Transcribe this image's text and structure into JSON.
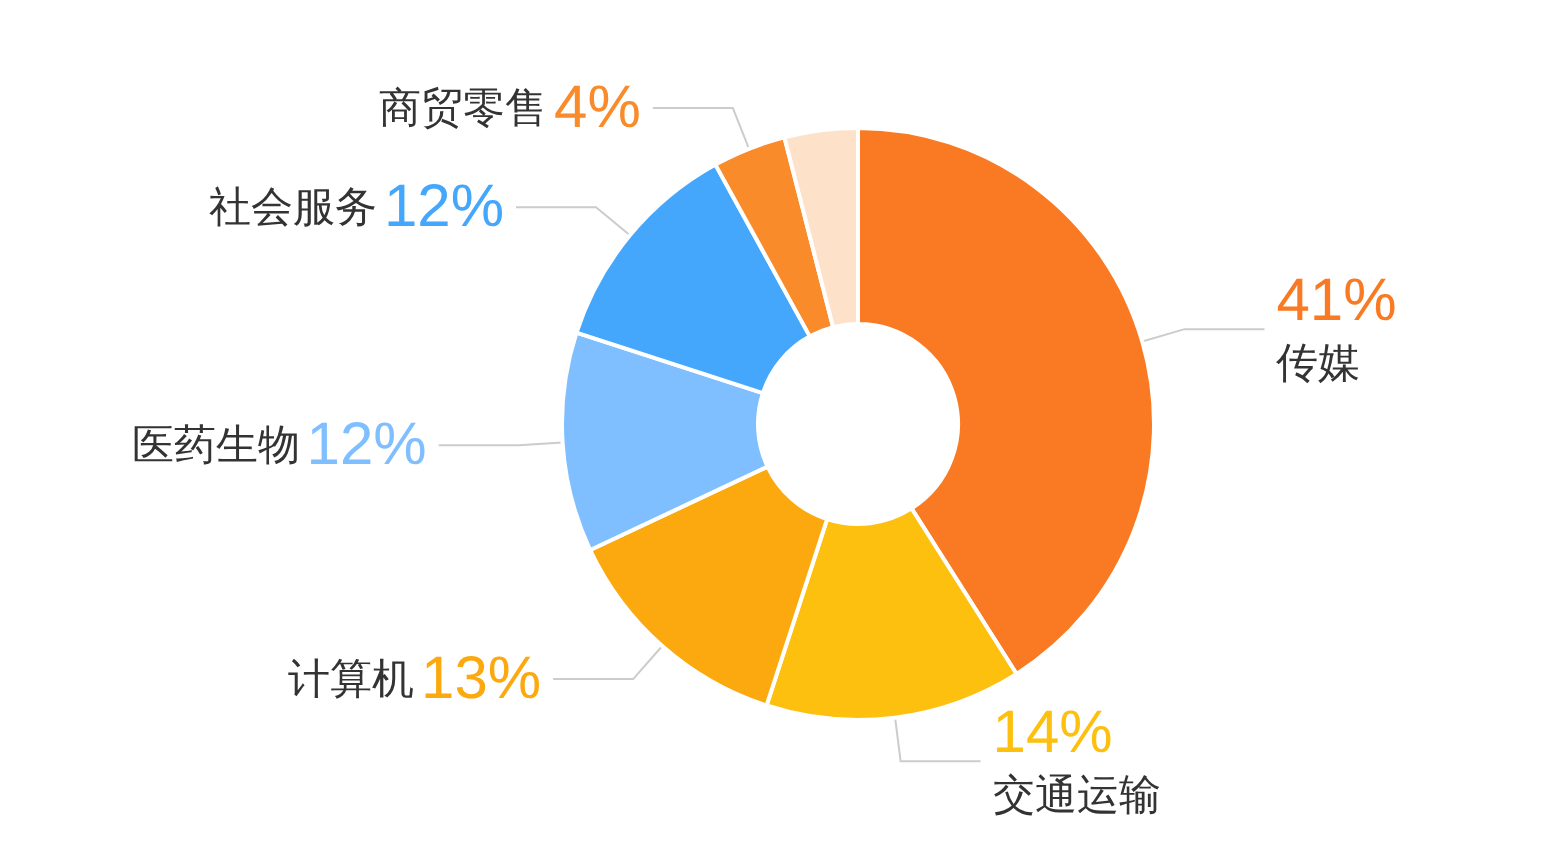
{
  "chart_data": {
    "type": "donut",
    "categories": [
      "传媒",
      "交通运输",
      "计算机",
      "医药生物",
      "社会服务",
      "商贸零售",
      null
    ],
    "values": [
      41,
      14,
      13,
      12,
      12,
      4,
      4
    ],
    "value_labels": [
      "41%",
      "14%",
      "13%",
      "12%",
      "12%",
      "4%",
      null
    ],
    "colors": [
      "#f97a22",
      "#fdc00f",
      "#fba90f",
      "#7fbfff",
      "#44a7fb",
      "#f98b2a",
      "#fde2c9"
    ],
    "legend": false
  }
}
